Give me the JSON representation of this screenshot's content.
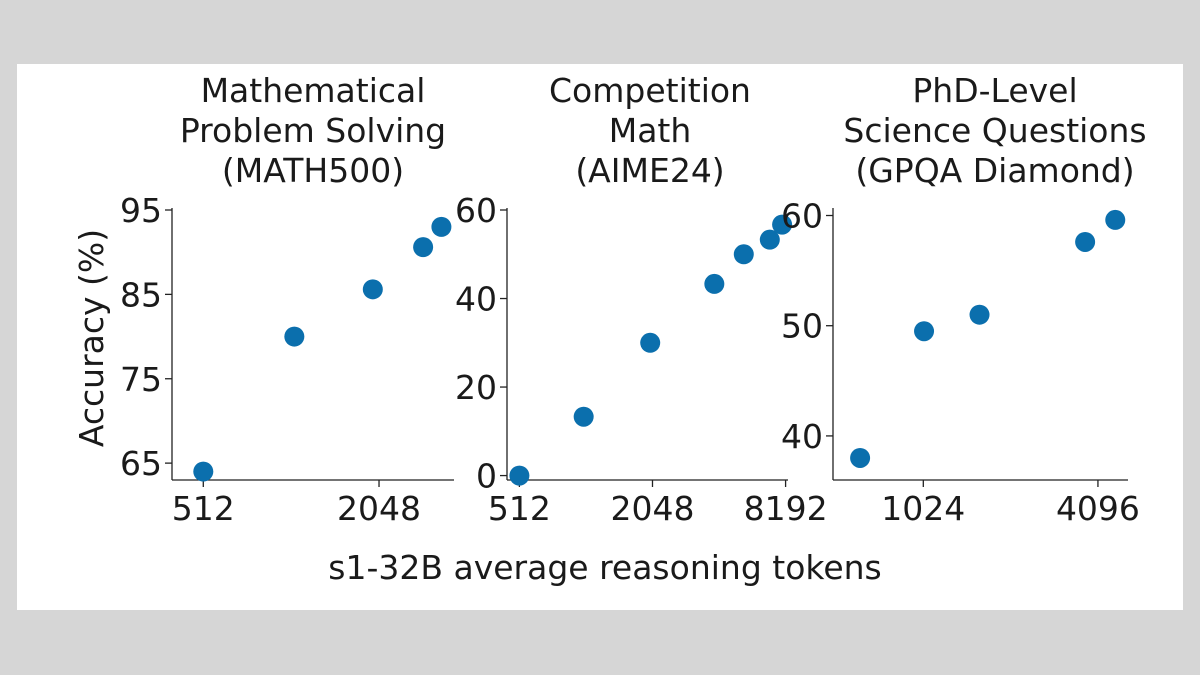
{
  "chart_data": [
    {
      "type": "scatter",
      "title": [
        "Mathematical",
        "Problem Solving",
        "(MATH500)"
      ],
      "x_scale": "log2",
      "xlim": [
        400,
        3700
      ],
      "ylim": [
        63,
        95
      ],
      "xticks": [
        512,
        2048
      ],
      "yticks": [
        65,
        75,
        85,
        95
      ],
      "x": [
        512,
        1050,
        1950,
        2900,
        3350
      ],
      "y": [
        64.0,
        80.0,
        85.6,
        90.6,
        93.0
      ],
      "color": "#0b6fad"
    },
    {
      "type": "scatter",
      "title": [
        "Competition",
        "Math",
        "(AIME24)"
      ],
      "x_scale": "log2",
      "xlim": [
        450,
        8400
      ],
      "ylim": [
        -1,
        60
      ],
      "xticks": [
        512,
        2048,
        8192
      ],
      "yticks": [
        0,
        20,
        40,
        60
      ],
      "x": [
        512,
        1000,
        2000,
        3900,
        5300,
        6950,
        7900
      ],
      "y": [
        0.0,
        13.3,
        30.0,
        43.3,
        50.0,
        53.3,
        56.7
      ],
      "color": "#0b6fad"
    },
    {
      "type": "scatter",
      "title": [
        "PhD-Level",
        "Science Questions",
        "(GPQA Diamond)"
      ],
      "x_scale": "log2",
      "xlim": [
        500,
        5200
      ],
      "ylim": [
        36,
        60.5
      ],
      "xticks": [
        1024,
        4096
      ],
      "yticks": [
        40,
        50,
        60
      ],
      "x": [
        620,
        1030,
        1600,
        3700,
        4700
      ],
      "y": [
        38.0,
        49.5,
        51.0,
        57.6,
        59.6
      ],
      "color": "#0b6fad"
    }
  ],
  "ylabel": "Accuracy (%)",
  "xlabel": "s1-32B average reasoning tokens"
}
